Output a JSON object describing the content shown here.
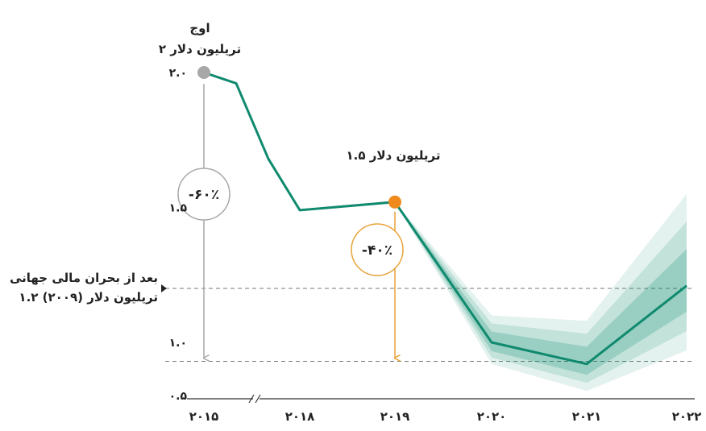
{
  "chart_data": {
    "type": "line",
    "categories": [
      "۲۰۱۵",
      "۲۰۱۸",
      "۲۰۱۹",
      "۲۰۲۰",
      "۲۰۲۱",
      "۲۰۲۲"
    ],
    "x": [
      2015,
      2016,
      2017,
      2018,
      2019,
      2020,
      2021,
      2022
    ],
    "series": [
      {
        "values": [
          2.0,
          1.96,
          1.68,
          1.49,
          1.52,
          1.0,
          0.92,
          1.21
        ],
        "band_upper": [
          null,
          null,
          null,
          null,
          1.52,
          1.1,
          1.08,
          1.55
        ],
        "band_lower": [
          null,
          null,
          null,
          null,
          1.52,
          0.92,
          0.82,
          0.97
        ],
        "color": "#0f8a6e"
      }
    ],
    "ylim": [
      0.5,
      2.05
    ],
    "y_ticks": [
      {
        "value": 2.0,
        "label": "۲.۰"
      },
      {
        "value": 1.5,
        "label": "۱.۵"
      },
      {
        "value": 1.0,
        "label": "۱.۰"
      },
      {
        "value": 0.5,
        "label": "۰.۵"
      }
    ],
    "reference_lines": [
      {
        "value": 1.2,
        "style": "dashed",
        "label_lines": [
          "بعد از بحران مالی جهانی",
          "۱.۲ تریلیون دلار (۲۰۰۹)"
        ]
      },
      {
        "value": 0.93,
        "style": "dashed"
      }
    ],
    "annotations": {
      "peak": {
        "x": 2015,
        "y": 2.0,
        "lines": [
          "اوج",
          "۲ تریلیون دلار"
        ],
        "color": "#a8a8a8"
      },
      "point_2019": {
        "x": 2019,
        "y": 1.52,
        "label": "۱.۵ تریلیون دلار",
        "color": "#f08a1c"
      },
      "drop_60": {
        "label": "-۶۰٪",
        "color": "#a8a8a8"
      },
      "drop_40": {
        "label": "-۴۰٪",
        "color": "#e8a33a"
      }
    },
    "grid": false
  }
}
